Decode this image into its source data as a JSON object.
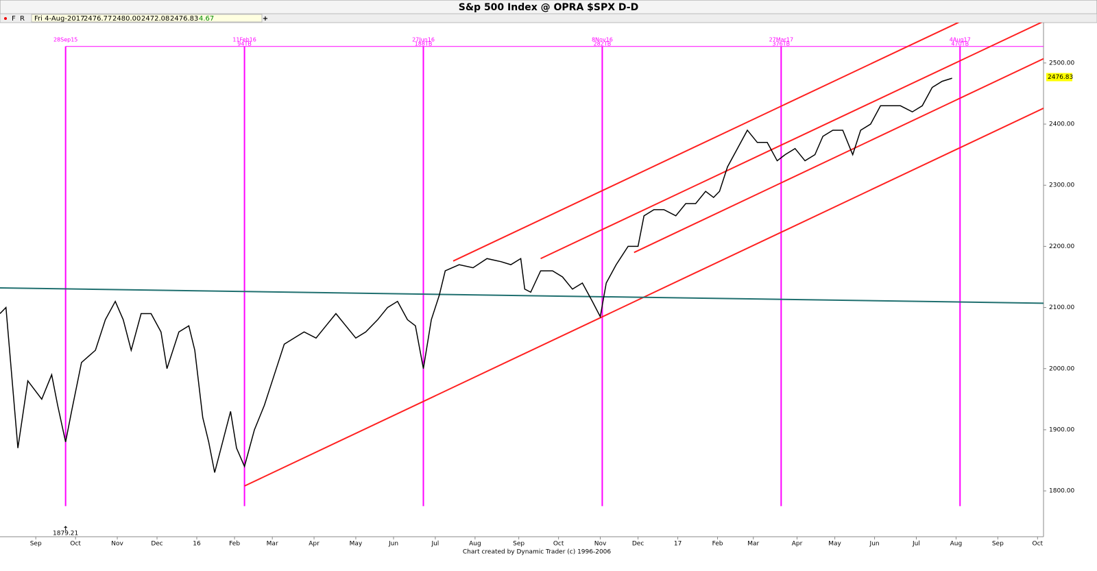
{
  "chart_data": {
    "type": "line",
    "title": "S&p 500 Index @ OPRA $SPX   D-D",
    "toolbar": [
      "F",
      "R"
    ],
    "add_button": "+",
    "quote": [
      "Fri 4-Aug-2017",
      "2476.77",
      "2480.00",
      "2472.08",
      "2476.83",
      "4.67"
    ],
    "footer": "Chart created by Dynamic Trader  (c) 1996-2006",
    "color": "#000000",
    "x": [
      0,
      3,
      9,
      14,
      21,
      26,
      29,
      33,
      36,
      41,
      48,
      53,
      58,
      62,
      66,
      71,
      76,
      81,
      84,
      90,
      95,
      98,
      102,
      105,
      108,
      112,
      116,
      119,
      123,
      128,
      133,
      138,
      143,
      148,
      153,
      159,
      164,
      169,
      174,
      179,
      184,
      190,
      195,
      200,
      205,
      209,
      213,
      217,
      221,
      224,
      231,
      238,
      245,
      252,
      257,
      262,
      264,
      267,
      272,
      278,
      283,
      288,
      293,
      298,
      302,
      305,
      310,
      316,
      321,
      324,
      329,
      334,
      340,
      345,
      350,
      355,
      359,
      362,
      366,
      371,
      376,
      381,
      386,
      391,
      395,
      400,
      405,
      410,
      414,
      419,
      424,
      429,
      433,
      438,
      443,
      448,
      453,
      459,
      464,
      469,
      474,
      479
    ],
    "values": [
      2090,
      2100,
      1870,
      1980,
      1950,
      1990,
      1940,
      1880,
      1930,
      2010,
      2030,
      2080,
      2110,
      2080,
      2030,
      2090,
      2090,
      2060,
      2000,
      2060,
      2070,
      2030,
      1920,
      1880,
      1830,
      1880,
      1930,
      1870,
      1840,
      1900,
      1940,
      1990,
      2040,
      2050,
      2060,
      2050,
      2070,
      2090,
      2070,
      2050,
      2060,
      2080,
      2100,
      2110,
      2080,
      2070,
      2000,
      2080,
      2120,
      2160,
      2170,
      2165,
      2180,
      2175,
      2170,
      2180,
      2130,
      2125,
      2160,
      2160,
      2150,
      2130,
      2140,
      2110,
      2085,
      2140,
      2170,
      2200,
      2200,
      2250,
      2260,
      2260,
      2250,
      2270,
      2270,
      2290,
      2280,
      2290,
      2330,
      2360,
      2390,
      2370,
      2370,
      2340,
      2350,
      2360,
      2340,
      2350,
      2380,
      2390,
      2390,
      2350,
      2390,
      2400,
      2430,
      2430,
      2430,
      2420,
      2430,
      2460,
      2470,
      2475
    ],
    "last_price": 2476.83,
    "low_annotation": {
      "x": 33,
      "value": 1879.21
    },
    "xlim": [
      0,
      525
    ],
    "ylim": [
      1725,
      2566
    ],
    "yticks": [
      {
        "value": 1800,
        "label": "1800.00"
      },
      {
        "value": 1900,
        "label": "1900.00"
      },
      {
        "value": 2000,
        "label": "2000.00"
      },
      {
        "value": 2100,
        "label": "2100.00"
      },
      {
        "value": 2200,
        "label": "2200.00"
      },
      {
        "value": 2300,
        "label": "2300.00"
      },
      {
        "value": 2400,
        "label": "2400.00"
      },
      {
        "value": 2500,
        "label": "2500.00"
      }
    ],
    "xticks": [
      {
        "value": 18,
        "label": "Sep"
      },
      {
        "value": 38,
        "label": "Oct"
      },
      {
        "value": 59,
        "label": "Nov"
      },
      {
        "value": 79,
        "label": "Dec"
      },
      {
        "value": 99,
        "label": "16"
      },
      {
        "value": 118,
        "label": "Feb"
      },
      {
        "value": 137,
        "label": "Mar"
      },
      {
        "value": 158,
        "label": "Apr"
      },
      {
        "value": 179,
        "label": "May"
      },
      {
        "value": 198,
        "label": "Jun"
      },
      {
        "value": 219,
        "label": "Jul"
      },
      {
        "value": 239,
        "label": "Aug"
      },
      {
        "value": 261,
        "label": "Sep"
      },
      {
        "value": 281,
        "label": "Oct"
      },
      {
        "value": 302,
        "label": "Nov"
      },
      {
        "value": 321,
        "label": "Dec"
      },
      {
        "value": 341,
        "label": "17"
      },
      {
        "value": 361,
        "label": "Feb"
      },
      {
        "value": 379,
        "label": "Mar"
      },
      {
        "value": 401,
        "label": "Apr"
      },
      {
        "value": 420,
        "label": "May"
      },
      {
        "value": 440,
        "label": "Jun"
      },
      {
        "value": 461,
        "label": "Jul"
      },
      {
        "value": 481,
        "label": "Aug"
      },
      {
        "value": 502,
        "label": "Sep"
      },
      {
        "value": 522,
        "label": "Oct"
      }
    ],
    "channel_lines": [
      {
        "color": "#ff2020",
        "x": [
          228,
          525
        ],
        "values": [
          2176,
          2632
        ]
      },
      {
        "color": "#ff2020",
        "x": [
          272,
          525
        ],
        "values": [
          2180,
          2568
        ]
      },
      {
        "color": "#ff2020",
        "x": [
          319,
          525
        ],
        "values": [
          2190,
          2507
        ]
      },
      {
        "color": "#ff2020",
        "x": [
          123,
          525
        ],
        "values": [
          1808,
          2426
        ]
      },
      {
        "color": "#1f6f6f",
        "x": [
          0,
          525
        ],
        "values": [
          2132,
          2107
        ]
      }
    ],
    "cycle_color": "#ff00ff",
    "cycle_level": 2527,
    "cycle_floor": 1775,
    "cycle_markers": [
      {
        "x": 33,
        "date": "28Sep15"
      },
      {
        "x": 123,
        "date": "11Feb16",
        "count": "94TB"
      },
      {
        "x": 213,
        "date": "27Jun16",
        "count": "188TB"
      },
      {
        "x": 303,
        "date": "8Nov16",
        "count": "282TB"
      },
      {
        "x": 393,
        "date": "27Mar17",
        "count": "376TB"
      },
      {
        "x": 483,
        "date": "4Aug17",
        "count": "470TB"
      }
    ]
  }
}
